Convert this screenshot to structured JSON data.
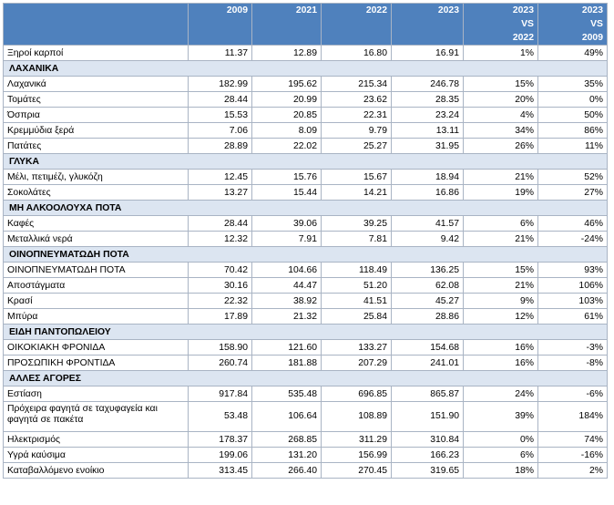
{
  "headers": [
    "2009",
    "2021",
    "2022",
    "2023",
    "2023 VS 2022",
    "2023 VS 2009"
  ],
  "rows": [
    {
      "type": "data",
      "label": "Ξηροί καρποί",
      "values": [
        "11.37",
        "12.89",
        "16.80",
        "16.91",
        "1%",
        "49%"
      ]
    },
    {
      "type": "section",
      "label": "ΛΑΧΑΝΙΚΑ"
    },
    {
      "type": "data",
      "label": "Λαχανικά",
      "values": [
        "182.99",
        "195.62",
        "215.34",
        "246.78",
        "15%",
        "35%"
      ]
    },
    {
      "type": "data",
      "label": "Τομάτες",
      "values": [
        "28.44",
        "20.99",
        "23.62",
        "28.35",
        "20%",
        "0%"
      ]
    },
    {
      "type": "data",
      "label": "Όσπρια",
      "values": [
        "15.53",
        "20.85",
        "22.31",
        "23.24",
        "4%",
        "50%"
      ]
    },
    {
      "type": "data",
      "label": "Κρεμμύδια ξερά",
      "values": [
        "7.06",
        "8.09",
        "9.79",
        "13.11",
        "34%",
        "86%"
      ]
    },
    {
      "type": "data",
      "label": "Πατάτες",
      "values": [
        "28.89",
        "22.02",
        "25.27",
        "31.95",
        "26%",
        "11%"
      ]
    },
    {
      "type": "section",
      "label": "ΓΛΥΚΑ"
    },
    {
      "type": "data",
      "label": "Μέλι, πετιμέζι, γλυκόζη",
      "values": [
        "12.45",
        "15.76",
        "15.67",
        "18.94",
        "21%",
        "52%"
      ]
    },
    {
      "type": "data",
      "label": "Σοκολάτες",
      "values": [
        "13.27",
        "15.44",
        "14.21",
        "16.86",
        "19%",
        "27%"
      ]
    },
    {
      "type": "section",
      "label": "ΜΗ ΑΛΚΟΟΛΟΥΧΑ ΠΟΤΑ"
    },
    {
      "type": "data",
      "label": "Καφές",
      "values": [
        "28.44",
        "39.06",
        "39.25",
        "41.57",
        "6%",
        "46%"
      ]
    },
    {
      "type": "data",
      "label": "Μεταλλικά νερά",
      "values": [
        "12.32",
        "7.91",
        "7.81",
        "9.42",
        "21%",
        "-24%"
      ]
    },
    {
      "type": "section",
      "label": "ΟΙΝΟΠΝΕΥΜΑΤΩΔΗ ΠΟΤΑ"
    },
    {
      "type": "data",
      "label": "ΟΙΝΟΠΝΕΥΜΑΤΩΔΗ ΠΟΤΑ",
      "values": [
        "70.42",
        "104.66",
        "118.49",
        "136.25",
        "15%",
        "93%"
      ]
    },
    {
      "type": "data",
      "label": "Αποστάγματα",
      "values": [
        "30.16",
        "44.47",
        "51.20",
        "62.08",
        "21%",
        "106%"
      ]
    },
    {
      "type": "data",
      "label": "Κρασί",
      "values": [
        "22.32",
        "38.92",
        "41.51",
        "45.27",
        "9%",
        "103%"
      ]
    },
    {
      "type": "data",
      "label": "Μπύρα",
      "values": [
        "17.89",
        "21.32",
        "25.84",
        "28.86",
        "12%",
        "61%"
      ]
    },
    {
      "type": "section",
      "label": "ΕΙΔΗ ΠΑΝΤΟΠΩΛΕΙΟΥ"
    },
    {
      "type": "data",
      "label": "ΟΙΚΟΚΙΑΚΗ ΦΡΟΝΙΔΑ",
      "values": [
        "158.90",
        "121.60",
        "133.27",
        "154.68",
        "16%",
        "-3%"
      ]
    },
    {
      "type": "data",
      "label": "ΠΡΟΣΩΠΙΚΗ ΦΡΟΝΤΙΔΑ",
      "values": [
        "260.74",
        "181.88",
        "207.29",
        "241.01",
        "16%",
        "-8%"
      ]
    },
    {
      "type": "section",
      "label": "ΑΛΛΕΣ ΑΓΟΡΕΣ"
    },
    {
      "type": "data",
      "label": "Εστίαση",
      "values": [
        "917.84",
        "535.48",
        "696.85",
        "865.87",
        "24%",
        "-6%"
      ]
    },
    {
      "type": "data",
      "tall": true,
      "label": "Πρόχειρα φαγητά σε ταχυφαγεία και φαγητά σε πακέτα",
      "values": [
        "53.48",
        "106.64",
        "108.89",
        "151.90",
        "39%",
        "184%"
      ]
    },
    {
      "type": "data",
      "label": "Ηλεκτρισμός",
      "values": [
        "178.37",
        "268.85",
        "311.29",
        "310.84",
        "0%",
        "74%"
      ]
    },
    {
      "type": "data",
      "label": "Υγρά καύσιμα",
      "values": [
        "199.06",
        "131.20",
        "156.99",
        "166.23",
        "6%",
        "-16%"
      ]
    },
    {
      "type": "data",
      "label": "Καταβαλλόμενο ενοίκιο",
      "values": [
        "313.45",
        "266.40",
        "270.45",
        "319.65",
        "18%",
        "2%"
      ]
    }
  ]
}
